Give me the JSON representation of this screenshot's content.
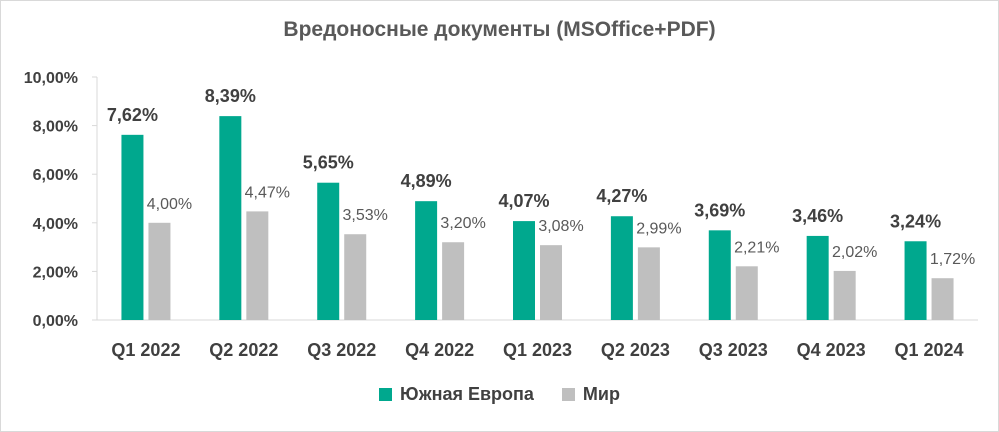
{
  "chart_data": {
    "type": "bar",
    "title": "Вредоносные документы (MSOffice+PDF)",
    "categories": [
      "Q1 2022",
      "Q2 2022",
      "Q3 2022",
      "Q4 2022",
      "Q1 2023",
      "Q2 2023",
      "Q3 2023",
      "Q4 2023",
      "Q1 2024"
    ],
    "series": [
      {
        "name": "Южная Европа",
        "color": "#00a88e",
        "values": [
          7.62,
          8.39,
          5.65,
          4.89,
          4.07,
          4.27,
          3.69,
          3.46,
          3.24
        ],
        "labels": [
          "7,62%",
          "8,39%",
          "5,65%",
          "4,89%",
          "4,07%",
          "4,27%",
          "3,69%",
          "3,46%",
          "3,24%"
        ]
      },
      {
        "name": "Мир",
        "color": "#bfbfbf",
        "values": [
          4.0,
          4.47,
          3.53,
          3.2,
          3.08,
          2.99,
          2.21,
          2.02,
          1.72
        ],
        "labels": [
          "4,00%",
          "4,47%",
          "3,53%",
          "3,20%",
          "3,08%",
          "2,99%",
          "2,21%",
          "2,02%",
          "1,72%"
        ]
      }
    ],
    "ylim": [
      0,
      10
    ],
    "yticks": [
      0,
      2,
      4,
      6,
      8,
      10
    ],
    "ytick_labels": [
      "0,00%",
      "2,00%",
      "4,00%",
      "6,00%",
      "8,00%",
      "10,00%"
    ],
    "xlabel": "",
    "ylabel": "",
    "grid": false,
    "legend": "bottom"
  }
}
